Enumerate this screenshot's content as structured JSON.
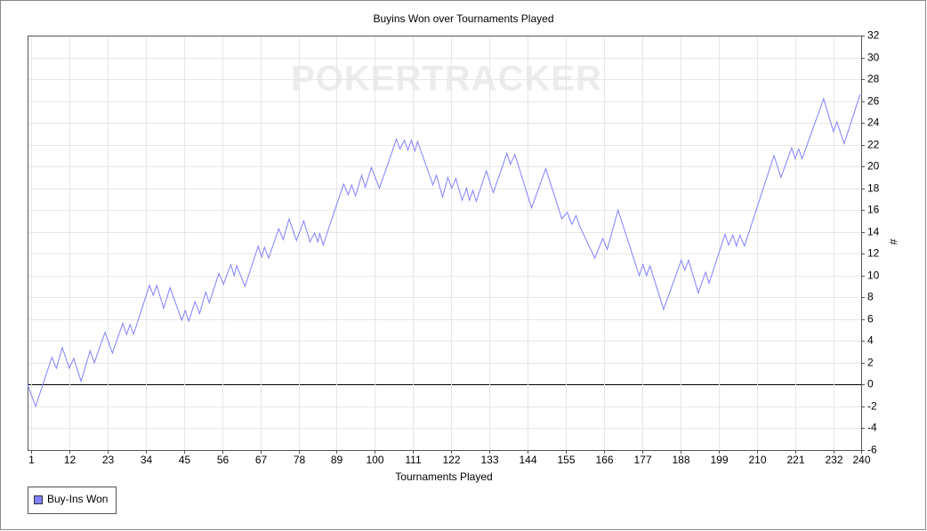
{
  "chart_data": {
    "type": "line",
    "title": "Buyins Won over Tournaments Played",
    "watermark": "POKERTRACKER",
    "x_label": "Tournaments Played",
    "y_label": "#",
    "xlim": [
      0,
      240
    ],
    "xticks": [
      1,
      12,
      23,
      34,
      45,
      56,
      67,
      78,
      89,
      100,
      111,
      122,
      133,
      144,
      155,
      166,
      177,
      188,
      199,
      210,
      221,
      232,
      240
    ],
    "ylim": [
      -6,
      32
    ],
    "yticks": [
      -6,
      -4,
      -2,
      0,
      2,
      4,
      6,
      8,
      10,
      12,
      14,
      16,
      18,
      20,
      22,
      24,
      26,
      28,
      30,
      32
    ],
    "grid": true,
    "legend": "bottom-left",
    "series": [
      {
        "name": "Buy-Ins Won",
        "color": "#8080ff",
        "x": [
          0,
          2.3,
          7,
          8.3,
          10,
          12,
          13.3,
          15.4,
          18,
          19.2,
          22.3,
          24.4,
          27.4,
          28.5,
          29.5,
          30.5,
          35.1,
          36.2,
          37.2,
          39.2,
          41,
          44.4,
          45.4,
          46.4,
          48.2,
          49.5,
          51.3,
          52.3,
          55.1,
          56.4,
          58.5,
          59.5,
          60.2,
          62.6,
          66.4,
          67.4,
          68.2,
          69.4,
          72.3,
          73.6,
          75.3,
          77.4,
          79.5,
          81.3,
          82.6,
          83.6,
          84.1,
          85.1,
          91,
          92.3,
          93.3,
          94.4,
          96.2,
          97.2,
          99,
          101.3,
          106.2,
          107.2,
          108.5,
          109.5,
          110.5,
          111.5,
          112.3,
          116.7,
          117.7,
          119.5,
          121,
          122.1,
          123.3,
          125.1,
          126.4,
          127.2,
          128.2,
          129.2,
          132.1,
          134.1,
          138,
          139,
          140.3,
          145.1,
          149.2,
          153.8,
          155.4,
          156.7,
          157.9,
          159,
          163.3,
          165.6,
          166.9,
          170,
          176.1,
          177.2,
          178.2,
          179.2,
          183.1,
          188.2,
          189.2,
          190.3,
          193.1,
          195.2,
          196.2,
          200.8,
          201.8,
          203.1,
          204.1,
          205.1,
          206.4,
          214.9,
          216.9,
          220,
          221,
          222,
          223,
          229.2,
          232,
          233,
          235.1,
          239.7
        ],
        "values": [
          0,
          -2,
          2.5,
          1.5,
          3.4,
          1.5,
          2.4,
          0.3,
          3.1,
          2,
          4.8,
          2.9,
          5.6,
          4.6,
          5.5,
          4.6,
          9.1,
          8.2,
          9.1,
          7,
          8.9,
          5.9,
          6.8,
          5.8,
          7.6,
          6.5,
          8.5,
          7.5,
          10.2,
          9.2,
          11,
          10,
          10.9,
          9,
          12.7,
          11.7,
          12.6,
          11.6,
          14.3,
          13.3,
          15.2,
          13.2,
          15,
          13.1,
          13.9,
          13.1,
          13.9,
          12.8,
          18.4,
          17.4,
          18.3,
          17.3,
          19.2,
          18.1,
          19.9,
          18,
          22.5,
          21.6,
          22.4,
          21.5,
          22.4,
          21.4,
          22.3,
          18.3,
          19.2,
          17.2,
          19,
          18,
          18.9,
          16.9,
          18,
          16.9,
          17.8,
          16.8,
          19.6,
          17.6,
          21.2,
          20.2,
          21.1,
          16.2,
          19.8,
          15.2,
          15.8,
          14.7,
          15.5,
          14.5,
          11.6,
          13.4,
          12.4,
          16,
          10,
          11,
          10,
          10.9,
          6.9,
          11.4,
          10.5,
          11.4,
          8.4,
          10.3,
          9.3,
          13.8,
          12.8,
          13.7,
          12.7,
          13.7,
          12.7,
          21,
          19,
          21.7,
          20.7,
          21.6,
          20.7,
          26.2,
          23.2,
          24.1,
          22.1,
          26.6
        ]
      }
    ]
  }
}
